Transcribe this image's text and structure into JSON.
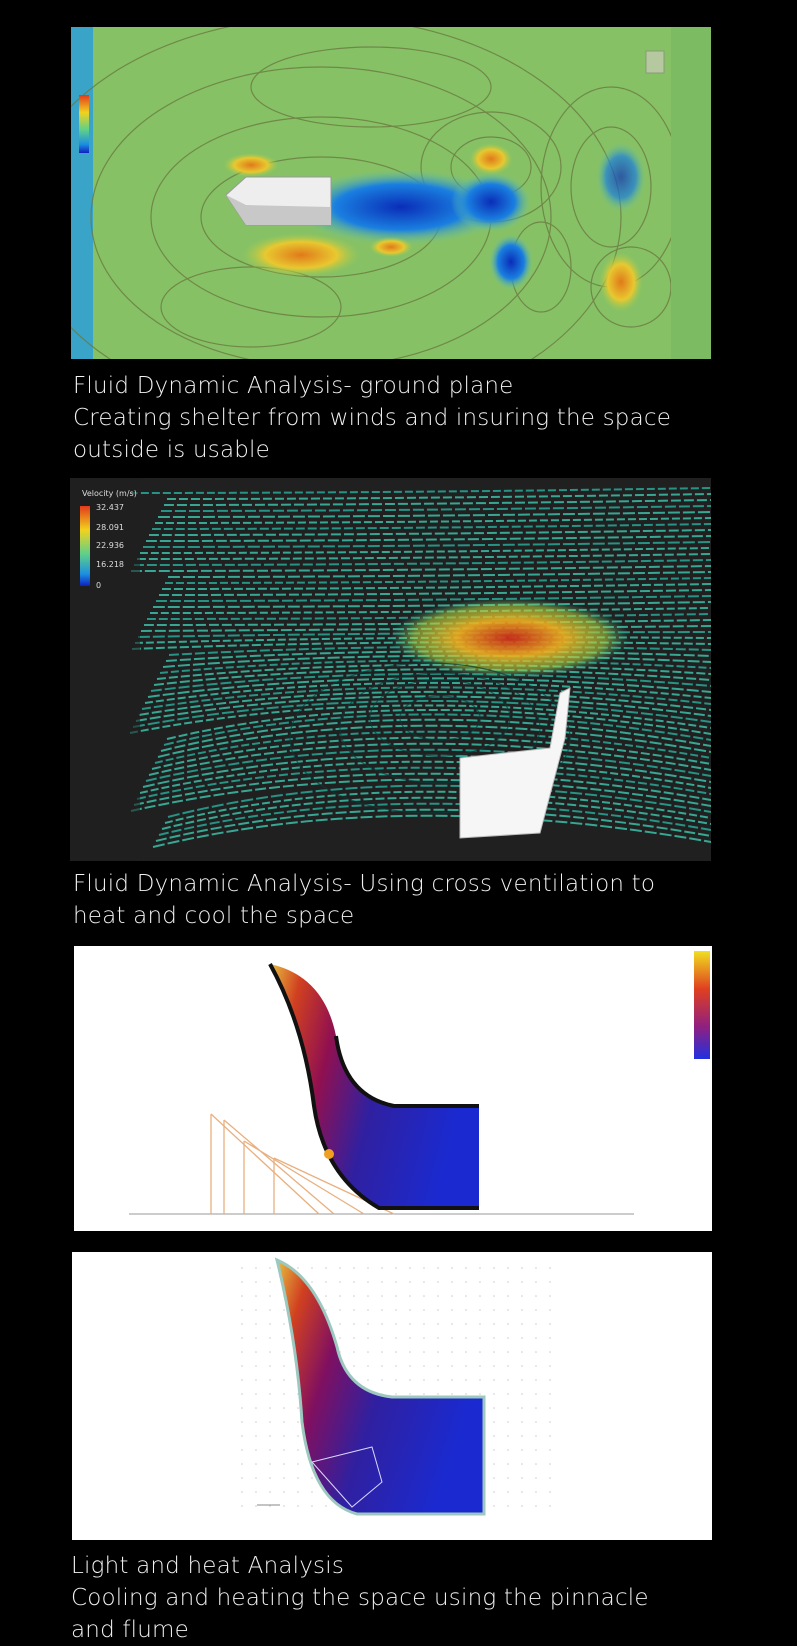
{
  "captions": [
    [
      "Fluid Dynamic Analysis- ground plane",
      "Creating shelter from winds and insuring the space",
      "outside is usable"
    ],
    [
      "Fluid Dynamic Analysis- Using cross ventilation to",
      "heat and cool the space"
    ],
    [
      "Light and heat Analysis",
      "Cooling and heating the space using the pinnacle",
      "and flume"
    ]
  ],
  "figure2_legend": {
    "title": "Velocity (m/s)",
    "labels": [
      "32.437",
      "28.091",
      "22.936",
      "16.218",
      "0"
    ]
  }
}
